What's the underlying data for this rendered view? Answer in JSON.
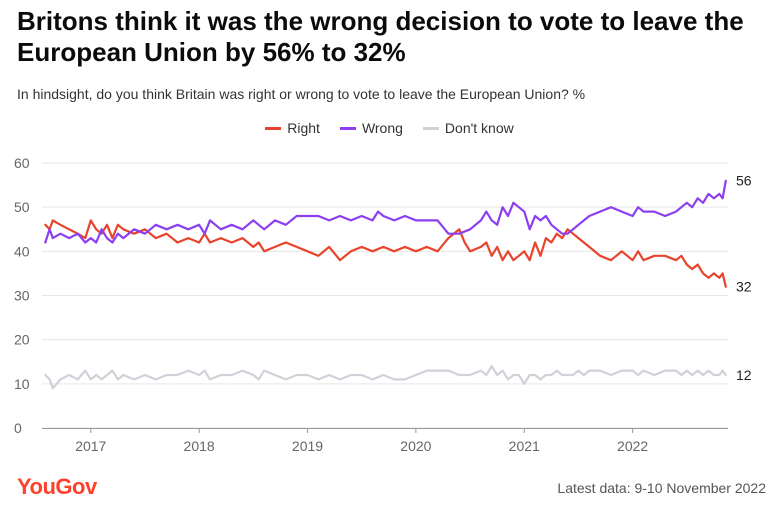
{
  "title": "Britons think it was the wrong decision to vote to leave the European Union by 56% to 32%",
  "subtitle": "In hindsight, do you think Britain was right or wrong to vote to leave the European Union? %",
  "brand": "YouGov",
  "latest": "Latest data: 9-10 November 2022",
  "colors": {
    "right": "#e8432b",
    "wrong": "#8c3ff0",
    "dontknow": "#cfd2d9",
    "grid": "#e6e6e6",
    "tick": "#666666"
  },
  "chart_data": {
    "type": "line",
    "title": "Britons think it was the wrong decision to vote to leave the European Union by 56% to 32%",
    "ylim": [
      0,
      60
    ],
    "xlim": [
      2016.55,
      2022.88
    ],
    "yticks": [
      "0",
      "10",
      "20",
      "30",
      "40",
      "50",
      "60"
    ],
    "xticks": [
      {
        "label": "2017",
        "value": 2017
      },
      {
        "label": "2018",
        "value": 2018
      },
      {
        "label": "2019",
        "value": 2019
      },
      {
        "label": "2020",
        "value": 2020
      },
      {
        "label": "2021",
        "value": 2021
      },
      {
        "label": "2022",
        "value": 2022
      }
    ],
    "legend_position": "top-center",
    "series": [
      {
        "name": "Right",
        "key": "right",
        "end_label": "32",
        "points": [
          [
            2016.58,
            46
          ],
          [
            2016.62,
            45
          ],
          [
            2016.65,
            47
          ],
          [
            2016.72,
            46
          ],
          [
            2016.8,
            45
          ],
          [
            2016.88,
            44
          ],
          [
            2016.95,
            43
          ],
          [
            2017.0,
            47
          ],
          [
            2017.05,
            45
          ],
          [
            2017.1,
            44
          ],
          [
            2017.15,
            46
          ],
          [
            2017.2,
            43
          ],
          [
            2017.25,
            46
          ],
          [
            2017.3,
            45
          ],
          [
            2017.4,
            44
          ],
          [
            2017.5,
            45
          ],
          [
            2017.6,
            43
          ],
          [
            2017.7,
            44
          ],
          [
            2017.8,
            42
          ],
          [
            2017.9,
            43
          ],
          [
            2018.0,
            42
          ],
          [
            2018.05,
            44
          ],
          [
            2018.1,
            42
          ],
          [
            2018.2,
            43
          ],
          [
            2018.3,
            42
          ],
          [
            2018.4,
            43
          ],
          [
            2018.5,
            41
          ],
          [
            2018.55,
            42
          ],
          [
            2018.6,
            40
          ],
          [
            2018.7,
            41
          ],
          [
            2018.8,
            42
          ],
          [
            2018.9,
            41
          ],
          [
            2019.0,
            40
          ],
          [
            2019.1,
            39
          ],
          [
            2019.2,
            41
          ],
          [
            2019.3,
            38
          ],
          [
            2019.4,
            40
          ],
          [
            2019.5,
            41
          ],
          [
            2019.6,
            40
          ],
          [
            2019.7,
            41
          ],
          [
            2019.8,
            40
          ],
          [
            2019.9,
            41
          ],
          [
            2020.0,
            40
          ],
          [
            2020.1,
            41
          ],
          [
            2020.2,
            40
          ],
          [
            2020.3,
            43
          ],
          [
            2020.4,
            45
          ],
          [
            2020.45,
            42
          ],
          [
            2020.5,
            40
          ],
          [
            2020.6,
            41
          ],
          [
            2020.65,
            42
          ],
          [
            2020.7,
            39
          ],
          [
            2020.75,
            41
          ],
          [
            2020.8,
            38
          ],
          [
            2020.85,
            40
          ],
          [
            2020.9,
            38
          ],
          [
            2020.95,
            39
          ],
          [
            2021.0,
            40
          ],
          [
            2021.05,
            38
          ],
          [
            2021.1,
            42
          ],
          [
            2021.15,
            39
          ],
          [
            2021.2,
            43
          ],
          [
            2021.25,
            42
          ],
          [
            2021.3,
            44
          ],
          [
            2021.35,
            43
          ],
          [
            2021.4,
            45
          ],
          [
            2021.45,
            44
          ],
          [
            2021.5,
            43
          ],
          [
            2021.55,
            42
          ],
          [
            2021.6,
            41
          ],
          [
            2021.7,
            39
          ],
          [
            2021.8,
            38
          ],
          [
            2021.9,
            40
          ],
          [
            2022.0,
            38
          ],
          [
            2022.05,
            40
          ],
          [
            2022.1,
            38
          ],
          [
            2022.2,
            39
          ],
          [
            2022.3,
            39
          ],
          [
            2022.4,
            38
          ],
          [
            2022.45,
            39
          ],
          [
            2022.5,
            37
          ],
          [
            2022.55,
            36
          ],
          [
            2022.6,
            37
          ],
          [
            2022.65,
            35
          ],
          [
            2022.7,
            34
          ],
          [
            2022.75,
            35
          ],
          [
            2022.8,
            34
          ],
          [
            2022.83,
            35
          ],
          [
            2022.86,
            32
          ]
        ]
      },
      {
        "name": "Wrong",
        "key": "wrong",
        "end_label": "56",
        "points": [
          [
            2016.58,
            42
          ],
          [
            2016.62,
            45
          ],
          [
            2016.65,
            43
          ],
          [
            2016.72,
            44
          ],
          [
            2016.8,
            43
          ],
          [
            2016.88,
            44
          ],
          [
            2016.95,
            42
          ],
          [
            2017.0,
            43
          ],
          [
            2017.05,
            42
          ],
          [
            2017.1,
            45
          ],
          [
            2017.15,
            43
          ],
          [
            2017.2,
            42
          ],
          [
            2017.25,
            44
          ],
          [
            2017.3,
            43
          ],
          [
            2017.4,
            45
          ],
          [
            2017.5,
            44
          ],
          [
            2017.6,
            46
          ],
          [
            2017.7,
            45
          ],
          [
            2017.8,
            46
          ],
          [
            2017.9,
            45
          ],
          [
            2018.0,
            46
          ],
          [
            2018.05,
            44
          ],
          [
            2018.1,
            47
          ],
          [
            2018.2,
            45
          ],
          [
            2018.3,
            46
          ],
          [
            2018.4,
            45
          ],
          [
            2018.5,
            47
          ],
          [
            2018.55,
            46
          ],
          [
            2018.6,
            45
          ],
          [
            2018.7,
            47
          ],
          [
            2018.8,
            46
          ],
          [
            2018.9,
            48
          ],
          [
            2019.0,
            48
          ],
          [
            2019.1,
            48
          ],
          [
            2019.2,
            47
          ],
          [
            2019.3,
            48
          ],
          [
            2019.4,
            47
          ],
          [
            2019.5,
            48
          ],
          [
            2019.6,
            47
          ],
          [
            2019.65,
            49
          ],
          [
            2019.7,
            48
          ],
          [
            2019.8,
            47
          ],
          [
            2019.9,
            48
          ],
          [
            2020.0,
            47
          ],
          [
            2020.1,
            47
          ],
          [
            2020.2,
            47
          ],
          [
            2020.3,
            44
          ],
          [
            2020.4,
            44
          ],
          [
            2020.5,
            45
          ],
          [
            2020.6,
            47
          ],
          [
            2020.65,
            49
          ],
          [
            2020.7,
            47
          ],
          [
            2020.75,
            46
          ],
          [
            2020.8,
            50
          ],
          [
            2020.85,
            48
          ],
          [
            2020.9,
            51
          ],
          [
            2020.95,
            50
          ],
          [
            2021.0,
            49
          ],
          [
            2021.05,
            45
          ],
          [
            2021.1,
            48
          ],
          [
            2021.15,
            47
          ],
          [
            2021.2,
            48
          ],
          [
            2021.25,
            46
          ],
          [
            2021.3,
            45
          ],
          [
            2021.35,
            44
          ],
          [
            2021.4,
            44
          ],
          [
            2021.45,
            45
          ],
          [
            2021.5,
            46
          ],
          [
            2021.55,
            47
          ],
          [
            2021.6,
            48
          ],
          [
            2021.7,
            49
          ],
          [
            2021.8,
            50
          ],
          [
            2021.9,
            49
          ],
          [
            2022.0,
            48
          ],
          [
            2022.05,
            50
          ],
          [
            2022.1,
            49
          ],
          [
            2022.2,
            49
          ],
          [
            2022.3,
            48
          ],
          [
            2022.4,
            49
          ],
          [
            2022.45,
            50
          ],
          [
            2022.5,
            51
          ],
          [
            2022.55,
            50
          ],
          [
            2022.6,
            52
          ],
          [
            2022.65,
            51
          ],
          [
            2022.7,
            53
          ],
          [
            2022.75,
            52
          ],
          [
            2022.8,
            53
          ],
          [
            2022.83,
            52
          ],
          [
            2022.86,
            56
          ]
        ]
      },
      {
        "name": "Don't know",
        "key": "dontknow",
        "end_label": "12",
        "points": [
          [
            2016.58,
            12
          ],
          [
            2016.62,
            11
          ],
          [
            2016.65,
            9
          ],
          [
            2016.72,
            11
          ],
          [
            2016.8,
            12
          ],
          [
            2016.88,
            11
          ],
          [
            2016.95,
            13
          ],
          [
            2017.0,
            11
          ],
          [
            2017.05,
            12
          ],
          [
            2017.1,
            11
          ],
          [
            2017.15,
            12
          ],
          [
            2017.2,
            13
          ],
          [
            2017.25,
            11
          ],
          [
            2017.3,
            12
          ],
          [
            2017.4,
            11
          ],
          [
            2017.5,
            12
          ],
          [
            2017.6,
            11
          ],
          [
            2017.7,
            12
          ],
          [
            2017.8,
            12
          ],
          [
            2017.9,
            13
          ],
          [
            2018.0,
            12
          ],
          [
            2018.05,
            13
          ],
          [
            2018.1,
            11
          ],
          [
            2018.2,
            12
          ],
          [
            2018.3,
            12
          ],
          [
            2018.4,
            13
          ],
          [
            2018.5,
            12
          ],
          [
            2018.55,
            11
          ],
          [
            2018.6,
            13
          ],
          [
            2018.7,
            12
          ],
          [
            2018.8,
            11
          ],
          [
            2018.9,
            12
          ],
          [
            2019.0,
            12
          ],
          [
            2019.1,
            11
          ],
          [
            2019.2,
            12
          ],
          [
            2019.3,
            11
          ],
          [
            2019.4,
            12
          ],
          [
            2019.5,
            12
          ],
          [
            2019.6,
            11
          ],
          [
            2019.7,
            12
          ],
          [
            2019.8,
            11
          ],
          [
            2019.9,
            11
          ],
          [
            2020.0,
            12
          ],
          [
            2020.1,
            13
          ],
          [
            2020.2,
            13
          ],
          [
            2020.3,
            13
          ],
          [
            2020.4,
            12
          ],
          [
            2020.5,
            12
          ],
          [
            2020.6,
            13
          ],
          [
            2020.65,
            12
          ],
          [
            2020.7,
            14
          ],
          [
            2020.75,
            12
          ],
          [
            2020.8,
            13
          ],
          [
            2020.85,
            11
          ],
          [
            2020.9,
            12
          ],
          [
            2020.95,
            12
          ],
          [
            2021.0,
            10
          ],
          [
            2021.05,
            12
          ],
          [
            2021.1,
            12
          ],
          [
            2021.15,
            11
          ],
          [
            2021.2,
            12
          ],
          [
            2021.25,
            12
          ],
          [
            2021.3,
            13
          ],
          [
            2021.35,
            12
          ],
          [
            2021.4,
            12
          ],
          [
            2021.45,
            12
          ],
          [
            2021.5,
            13
          ],
          [
            2021.55,
            12
          ],
          [
            2021.6,
            13
          ],
          [
            2021.7,
            13
          ],
          [
            2021.8,
            12
          ],
          [
            2021.9,
            13
          ],
          [
            2022.0,
            13
          ],
          [
            2022.05,
            12
          ],
          [
            2022.1,
            13
          ],
          [
            2022.2,
            12
          ],
          [
            2022.3,
            13
          ],
          [
            2022.4,
            13
          ],
          [
            2022.45,
            12
          ],
          [
            2022.5,
            13
          ],
          [
            2022.55,
            12
          ],
          [
            2022.6,
            13
          ],
          [
            2022.65,
            12
          ],
          [
            2022.7,
            13
          ],
          [
            2022.75,
            12
          ],
          [
            2022.8,
            12
          ],
          [
            2022.83,
            13
          ],
          [
            2022.86,
            12
          ]
        ]
      }
    ]
  }
}
